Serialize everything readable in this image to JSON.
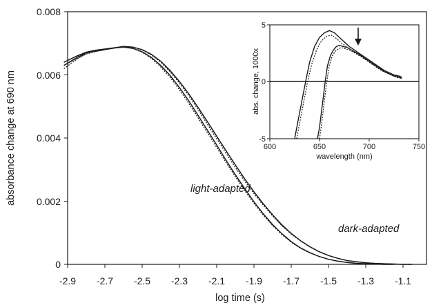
{
  "chart_data": [
    {
      "type": "line",
      "title": "",
      "xlabel": "log time (s)",
      "ylabel": "absorbance change at 690 nm",
      "xlim": [
        -2.95,
        -1.0
      ],
      "ylim": [
        0,
        0.008
      ],
      "x_ticks": [
        "-2.9",
        "-2.7",
        "-2.5",
        "-2.3",
        "-2.1",
        "-1.9",
        "-1.7",
        "-1.5",
        "-1.3",
        "-1.1"
      ],
      "y_ticks": [
        "0",
        "0.002",
        "0.004",
        "0.006",
        "0.008"
      ],
      "grid": false,
      "annotations": [
        "light-adapted",
        "dark-adapted"
      ],
      "series": [
        {
          "style": "solid",
          "x": [
            -2.92,
            -2.85,
            -2.8,
            -2.75,
            -2.7,
            -2.65,
            -2.6,
            -2.55,
            -2.5,
            -2.45,
            -2.4,
            -2.35,
            -2.3,
            -2.25,
            -2.2,
            -2.15,
            -2.1,
            -2.05,
            -2.0,
            -1.95,
            -1.9,
            -1.85,
            -1.8,
            -1.75,
            -1.7,
            -1.65,
            -1.6,
            -1.55,
            -1.5,
            -1.45,
            -1.4,
            -1.35,
            -1.3,
            -1.25,
            -1.2,
            -1.15
          ],
          "y": [
            0.0063,
            0.00655,
            0.0067,
            0.00675,
            0.0068,
            0.00685,
            0.00688,
            0.00684,
            0.00673,
            0.00655,
            0.0063,
            0.00598,
            0.0056,
            0.00518,
            0.00472,
            0.00425,
            0.00378,
            0.0033,
            0.00284,
            0.0024,
            0.00198,
            0.0016,
            0.00126,
            0.00097,
            0.00072,
            0.00052,
            0.00037,
            0.00025,
            0.00016,
            0.0001,
            6e-05,
            3e-05,
            2e-05,
            1e-05,
            0.0,
            0.0
          ]
        },
        {
          "style": "dotted",
          "x": [
            -2.92,
            -2.85,
            -2.8,
            -2.75,
            -2.7,
            -2.65,
            -2.6,
            -2.55,
            -2.5,
            -2.45,
            -2.4,
            -2.35,
            -2.3,
            -2.25,
            -2.2,
            -2.15,
            -2.1,
            -2.05,
            -2.0,
            -1.95,
            -1.9,
            -1.85,
            -1.8,
            -1.75,
            -1.7,
            -1.65,
            -1.6,
            -1.55,
            -1.5,
            -1.45,
            -1.4,
            -1.35,
            -1.3,
            -1.25,
            -1.2,
            -1.15
          ],
          "y": [
            0.0062,
            0.0065,
            0.00668,
            0.00676,
            0.00682,
            0.00686,
            0.00688,
            0.00684,
            0.00672,
            0.00652,
            0.00625,
            0.00592,
            0.00553,
            0.0051,
            0.00464,
            0.00417,
            0.0037,
            0.00323,
            0.00278,
            0.00234,
            0.00193,
            0.00156,
            0.00123,
            0.00094,
            0.0007,
            0.00051,
            0.00036,
            0.00025,
            0.00016,
            0.0001,
            6e-05,
            4e-05,
            2e-05,
            1e-05,
            0.0,
            0.0
          ]
        },
        {
          "style": "solid",
          "x": [
            -2.92,
            -2.85,
            -2.8,
            -2.75,
            -2.7,
            -2.65,
            -2.6,
            -2.55,
            -2.5,
            -2.45,
            -2.4,
            -2.35,
            -2.3,
            -2.25,
            -2.2,
            -2.15,
            -2.1,
            -2.05,
            -2.0,
            -1.95,
            -1.9,
            -1.85,
            -1.8,
            -1.75,
            -1.7,
            -1.65,
            -1.6,
            -1.55,
            -1.5,
            -1.45,
            -1.4,
            -1.35,
            -1.3,
            -1.25,
            -1.2,
            -1.15,
            -1.1,
            -1.05
          ],
          "y": [
            0.0064,
            0.0066,
            0.00672,
            0.00678,
            0.00682,
            0.00686,
            0.0069,
            0.00688,
            0.0068,
            0.00665,
            0.00643,
            0.00614,
            0.00579,
            0.0054,
            0.00497,
            0.00452,
            0.00406,
            0.0036,
            0.00315,
            0.00271,
            0.0023,
            0.00192,
            0.00157,
            0.00125,
            0.00098,
            0.00075,
            0.00056,
            0.0004,
            0.00028,
            0.00019,
            0.00012,
            8e-05,
            5e-05,
            3e-05,
            2e-05,
            1e-05,
            0.0,
            0.0
          ]
        },
        {
          "style": "dotted",
          "x": [
            -2.92,
            -2.85,
            -2.8,
            -2.75,
            -2.7,
            -2.65,
            -2.6,
            -2.55,
            -2.5,
            -2.45,
            -2.4,
            -2.35,
            -2.3,
            -2.25,
            -2.2,
            -2.15,
            -2.1,
            -2.05,
            -2.0,
            -1.95,
            -1.9,
            -1.85,
            -1.8,
            -1.75,
            -1.7,
            -1.65,
            -1.6,
            -1.55,
            -1.5,
            -1.45,
            -1.4,
            -1.35,
            -1.3,
            -1.25,
            -1.2,
            -1.15,
            -1.1,
            -1.05
          ],
          "y": [
            0.0063,
            0.00652,
            0.00666,
            0.00674,
            0.0068,
            0.00685,
            0.00688,
            0.00687,
            0.00679,
            0.00663,
            0.0064,
            0.0061,
            0.00574,
            0.00534,
            0.0049,
            0.00444,
            0.00398,
            0.00352,
            0.00307,
            0.00264,
            0.00224,
            0.00187,
            0.00153,
            0.00122,
            0.00096,
            0.00074,
            0.00055,
            0.0004,
            0.00028,
            0.00019,
            0.00012,
            8e-05,
            5e-05,
            3e-05,
            2e-05,
            1e-05,
            0.0,
            0.0
          ]
        }
      ]
    },
    {
      "type": "line",
      "title": "",
      "xlabel": "wavelength (nm)",
      "ylabel": "abs. change, 1000x",
      "xlim": [
        600,
        750
      ],
      "ylim": [
        -5,
        5
      ],
      "x_ticks": [
        "600",
        "650",
        "700",
        "750"
      ],
      "y_ticks": [
        "5",
        "0",
        "-5"
      ],
      "arrow_at_x": 690,
      "series": [
        {
          "style": "solid",
          "x": [
            625,
            628,
            632,
            636,
            640,
            645,
            650,
            655,
            660,
            665,
            670,
            675,
            680,
            685,
            690,
            695,
            700,
            705,
            710,
            715,
            720,
            725,
            730,
            733
          ],
          "y": [
            -5.0,
            -3.6,
            -1.8,
            0.0,
            1.7,
            3.1,
            3.9,
            4.3,
            4.5,
            4.3,
            3.9,
            3.5,
            3.1,
            2.8,
            2.5,
            2.2,
            1.9,
            1.6,
            1.3,
            1.0,
            0.8,
            0.6,
            0.5,
            0.4
          ]
        },
        {
          "style": "dotted",
          "x": [
            627,
            630,
            634,
            638,
            642,
            647,
            652,
            657,
            662,
            667,
            672,
            677,
            682,
            687,
            692,
            697,
            702,
            707,
            712,
            717,
            722,
            727,
            732
          ],
          "y": [
            -5.0,
            -3.6,
            -1.8,
            0.0,
            1.5,
            2.8,
            3.6,
            4.0,
            4.1,
            3.8,
            3.4,
            3.1,
            2.8,
            2.5,
            2.2,
            1.9,
            1.6,
            1.3,
            1.1,
            0.8,
            0.6,
            0.5,
            0.4
          ]
        },
        {
          "style": "solid",
          "x": [
            648,
            650,
            652,
            654,
            656,
            658,
            661,
            664,
            667,
            670,
            674,
            678,
            682,
            686,
            690,
            695,
            700,
            705,
            710,
            715,
            720,
            725,
            730,
            733
          ],
          "y": [
            -5.0,
            -4.0,
            -2.6,
            -1.2,
            0.2,
            1.4,
            2.3,
            2.8,
            3.1,
            3.2,
            3.1,
            3.0,
            2.8,
            2.6,
            2.4,
            2.1,
            1.8,
            1.5,
            1.2,
            0.9,
            0.7,
            0.5,
            0.4,
            0.3
          ]
        },
        {
          "style": "dotted",
          "x": [
            650,
            652,
            654,
            656,
            658,
            660,
            663,
            666,
            669,
            672,
            676,
            680,
            684,
            688,
            692,
            697,
            702,
            707,
            712,
            717,
            722,
            727,
            732
          ],
          "y": [
            -5.0,
            -3.8,
            -2.3,
            -0.9,
            0.4,
            1.5,
            2.3,
            2.7,
            2.9,
            3.0,
            2.9,
            2.8,
            2.6,
            2.4,
            2.2,
            1.9,
            1.6,
            1.3,
            1.0,
            0.8,
            0.6,
            0.4,
            0.3
          ]
        }
      ]
    }
  ]
}
